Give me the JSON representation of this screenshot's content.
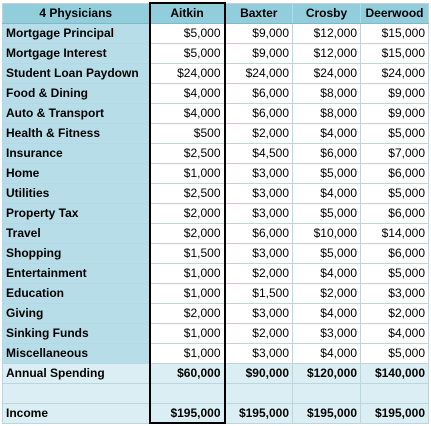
{
  "table": {
    "header": [
      "4 Physicians",
      "Aitkin",
      "Baxter",
      "Crosby",
      "Deerwood"
    ],
    "rows": [
      {
        "label": "Mortgage Principal",
        "values": [
          "$5,000",
          "$9,000",
          "$12,000",
          "$15,000"
        ]
      },
      {
        "label": "Mortgage Interest",
        "values": [
          "$5,000",
          "$9,000",
          "$12,000",
          "$15,000"
        ]
      },
      {
        "label": "Student Loan Paydown",
        "values": [
          "$24,000",
          "$24,000",
          "$24,000",
          "$24,000"
        ]
      },
      {
        "label": "Food & Dining",
        "values": [
          "$4,000",
          "$6,000",
          "$8,000",
          "$9,000"
        ]
      },
      {
        "label": "Auto & Transport",
        "values": [
          "$4,000",
          "$6,000",
          "$8,000",
          "$9,000"
        ]
      },
      {
        "label": "Health & Fitness",
        "values": [
          "$500",
          "$2,000",
          "$4,000",
          "$5,000"
        ]
      },
      {
        "label": "Insurance",
        "values": [
          "$2,500",
          "$4,500",
          "$6,000",
          "$7,000"
        ]
      },
      {
        "label": "Home",
        "values": [
          "$1,000",
          "$3,000",
          "$5,000",
          "$6,000"
        ]
      },
      {
        "label": "Utilities",
        "values": [
          "$2,500",
          "$3,000",
          "$4,000",
          "$5,000"
        ]
      },
      {
        "label": "Property Tax",
        "values": [
          "$2,000",
          "$3,000",
          "$5,000",
          "$6,000"
        ]
      },
      {
        "label": "Travel",
        "values": [
          "$2,000",
          "$6,000",
          "$10,000",
          "$14,000"
        ]
      },
      {
        "label": "Shopping",
        "values": [
          "$1,500",
          "$3,000",
          "$5,000",
          "$6,000"
        ]
      },
      {
        "label": "Entertainment",
        "values": [
          "$1,000",
          "$2,000",
          "$4,000",
          "$5,000"
        ]
      },
      {
        "label": "Education",
        "values": [
          "$1,000",
          "$1,500",
          "$2,000",
          "$3,000"
        ]
      },
      {
        "label": "Giving",
        "values": [
          "$2,000",
          "$3,000",
          "$4,000",
          "$2,000"
        ]
      },
      {
        "label": "Sinking Funds",
        "values": [
          "$1,000",
          "$2,000",
          "$3,000",
          "$4,000"
        ]
      },
      {
        "label": "Miscellaneous",
        "values": [
          "$1,000",
          "$3,000",
          "$4,000",
          "$5,000"
        ]
      }
    ],
    "annual_spending": {
      "label": "Annual Spending",
      "values": [
        "$60,000",
        "$90,000",
        "$120,000",
        "$140,000"
      ]
    },
    "income": {
      "label": "Income",
      "values": [
        "$195,000",
        "$195,000",
        "$195,000",
        "$195,000"
      ]
    }
  }
}
